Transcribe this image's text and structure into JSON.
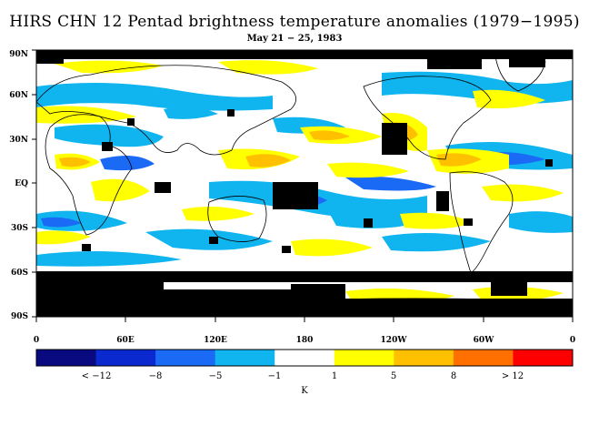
{
  "title": "HIRS CHN 12 Pentad brightness temperature anomalies (1979−1995)",
  "subtitle": "May 21 − 25, 1983",
  "map": {
    "projection": "equirectangular",
    "lat_labels": [
      "90N",
      "60N",
      "30N",
      "EQ",
      "30S",
      "60S",
      "90S"
    ],
    "lon_labels": [
      "0",
      "60E",
      "120E",
      "180",
      "120W",
      "60W",
      "0"
    ],
    "missing_data_color": "#000000",
    "coastline_color": "#000000"
  },
  "colorbar": {
    "colors": [
      "#0a0a80",
      "#0a2ad0",
      "#1a6af5",
      "#10b4ee",
      "#ffffff",
      "#ffff00",
      "#ffc000",
      "#ff7000",
      "#ff0000"
    ],
    "labels": [
      "< −12",
      "−8",
      "−5",
      "−1",
      "1",
      "5",
      "8",
      "> 12"
    ],
    "unit": "K"
  }
}
